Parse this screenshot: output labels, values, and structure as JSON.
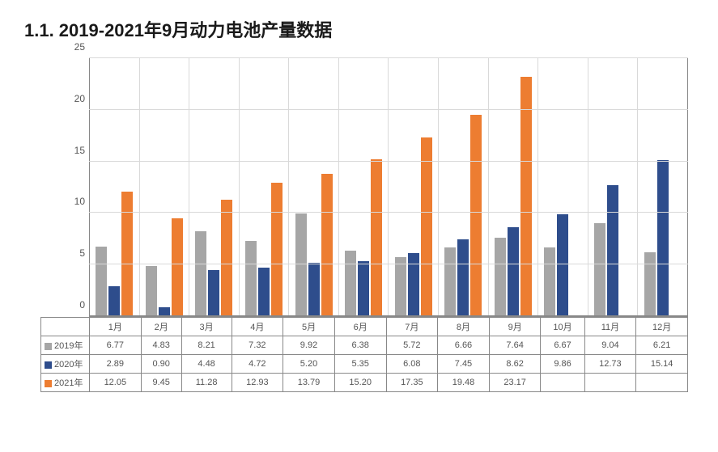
{
  "heading": "1.1.  2019-2021年9月动力电池产量数据",
  "chart": {
    "type": "bar",
    "ylim": [
      0,
      25
    ],
    "ytick_step": 5,
    "yticks": [
      0,
      5,
      10,
      15,
      20,
      25
    ],
    "label_fontsize": 12,
    "background_color": "#ffffff",
    "grid_color": "#d9d9d9",
    "axis_color": "#888888",
    "categories": [
      "1月",
      "2月",
      "3月",
      "4月",
      "5月",
      "6月",
      "7月",
      "8月",
      "9月",
      "10月",
      "11月",
      "12月"
    ],
    "series": [
      {
        "name": "2019年",
        "color": "#a6a6a6",
        "values": [
          6.77,
          4.83,
          8.21,
          7.32,
          9.92,
          6.38,
          5.72,
          6.66,
          7.64,
          6.67,
          9.04,
          6.21
        ]
      },
      {
        "name": "2020年",
        "color": "#2e4d8c",
        "values": [
          2.89,
          0.9,
          4.48,
          4.72,
          5.2,
          5.35,
          6.08,
          7.45,
          8.62,
          9.86,
          12.73,
          15.14
        ]
      },
      {
        "name": "2021年",
        "color": "#ed7d31",
        "values": [
          12.05,
          9.45,
          11.28,
          12.93,
          13.79,
          15.2,
          17.35,
          19.48,
          23.17,
          null,
          null,
          null
        ]
      }
    ]
  }
}
